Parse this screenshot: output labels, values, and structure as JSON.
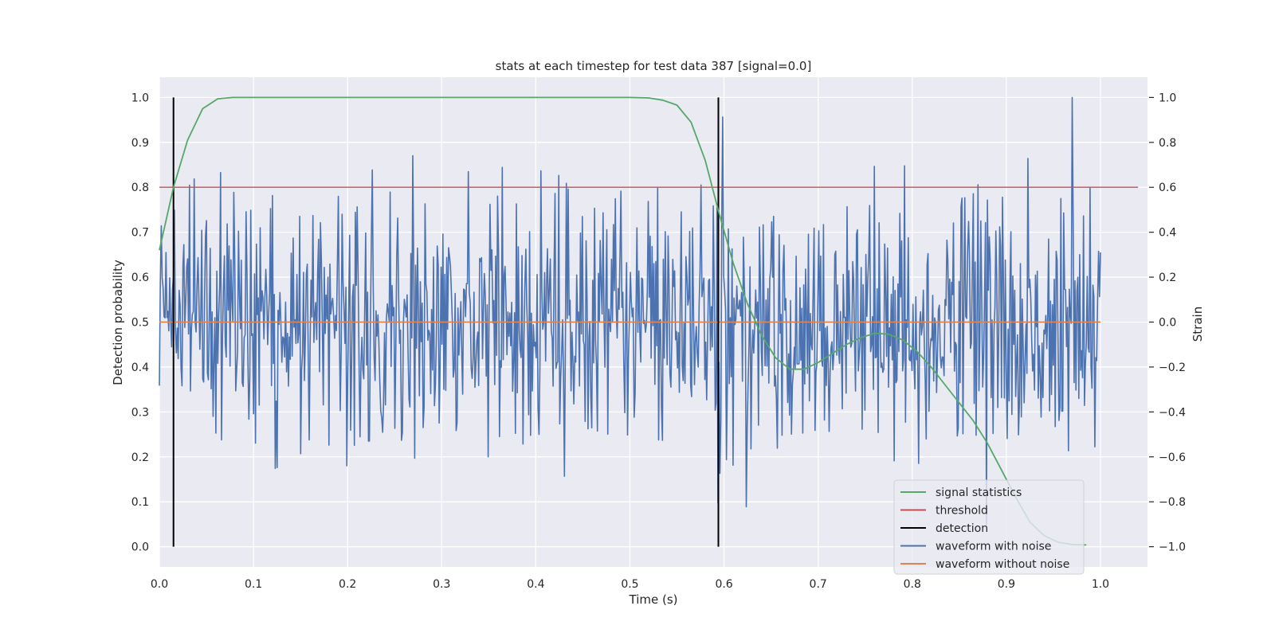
{
  "chart_data": {
    "type": "line",
    "title": "stats at each timestep for test data 387 [signal=0.0]",
    "xlabel": "Time (s)",
    "ylabel_left": "Detection probability",
    "ylabel_right": "Strain",
    "xlim": [
      0.0,
      1.05
    ],
    "ylim_left": [
      -0.045,
      1.045
    ],
    "ylim_right": [
      -1.09,
      1.09
    ],
    "x_ticks": [
      "0.0",
      "0.1",
      "0.2",
      "0.3",
      "0.4",
      "0.5",
      "0.6",
      "0.7",
      "0.8",
      "0.9",
      "1.0"
    ],
    "y_ticks_left": [
      "0.0",
      "0.1",
      "0.2",
      "0.3",
      "0.4",
      "0.5",
      "0.6",
      "0.7",
      "0.8",
      "0.9",
      "1.0"
    ],
    "y_ticks_right": [
      "−1.0",
      "−0.8",
      "−0.6",
      "−0.4",
      "−0.2",
      "0.0",
      "0.2",
      "0.4",
      "0.6",
      "0.8",
      "1.0"
    ],
    "grid": true,
    "legend_position": "lower-right",
    "legend": [
      "signal statistics",
      "threshold",
      "detection",
      "waveform with noise",
      "waveform without noise"
    ],
    "series": [
      {
        "name": "signal statistics",
        "axis": "left",
        "color": "#55a868",
        "x": [
          0.0,
          0.015,
          0.03,
          0.046,
          0.062,
          0.078,
          0.094,
          0.11,
          0.2,
          0.3,
          0.4,
          0.5,
          0.52,
          0.535,
          0.55,
          0.565,
          0.58,
          0.595,
          0.61,
          0.625,
          0.64,
          0.655,
          0.67,
          0.685,
          0.7,
          0.715,
          0.73,
          0.745,
          0.76,
          0.775,
          0.79,
          0.805,
          0.82,
          0.835,
          0.85,
          0.865,
          0.88,
          0.895,
          0.91,
          0.925,
          0.94,
          0.955,
          0.97,
          0.985
        ],
        "y": [
          0.66,
          0.8,
          0.905,
          0.975,
          0.997,
          1.0,
          1.0,
          1.0,
          1.0,
          1.0,
          1.0,
          1.0,
          0.999,
          0.994,
          0.983,
          0.945,
          0.86,
          0.74,
          0.63,
          0.54,
          0.47,
          0.42,
          0.395,
          0.395,
          0.41,
          0.43,
          0.45,
          0.465,
          0.475,
          0.473,
          0.46,
          0.435,
          0.4,
          0.36,
          0.32,
          0.28,
          0.23,
          0.17,
          0.11,
          0.055,
          0.025,
          0.01,
          0.005,
          0.004
        ]
      },
      {
        "name": "threshold",
        "axis": "left",
        "color": "#c44e52",
        "x": [
          0.0,
          1.04
        ],
        "y": [
          0.8,
          0.8
        ]
      },
      {
        "name": "detection",
        "axis": "left",
        "color": "#000000",
        "x_positions": [
          0.015,
          0.594
        ],
        "y_range": [
          0.0,
          1.0
        ]
      },
      {
        "name": "waveform with noise",
        "axis": "right",
        "color": "#4c72b0",
        "x_range": [
          0.0,
          1.0
        ],
        "n_points": 1000,
        "y_min": -1.0,
        "y_max": 1.0,
        "y_mean": 0.0,
        "y_std": 0.28
      },
      {
        "name": "waveform without noise",
        "axis": "right",
        "color": "#dd8452",
        "x": [
          0.0,
          1.0
        ],
        "y": [
          0.0,
          0.0
        ]
      }
    ]
  }
}
